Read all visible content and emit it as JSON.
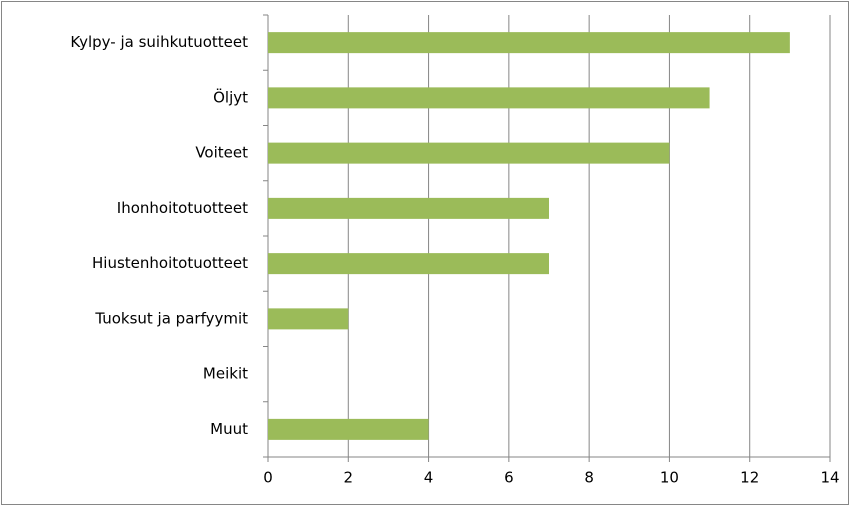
{
  "chart_data": {
    "type": "bar",
    "orientation": "horizontal",
    "categories": [
      "Kylpy- ja suihkutuotteet",
      "Öljyt",
      "Voiteet",
      "Ihonhoitotuotteet",
      "Hiustenhoitotuotteet",
      "Tuoksut ja parfyymit",
      "Meikit",
      "Muut"
    ],
    "values": [
      13,
      11,
      10,
      7,
      7,
      2,
      0,
      4
    ],
    "color": "#9bbb59",
    "xlim": [
      0,
      14
    ],
    "xticks": [
      0,
      2,
      4,
      6,
      8,
      10,
      12,
      14
    ],
    "grid": true
  }
}
